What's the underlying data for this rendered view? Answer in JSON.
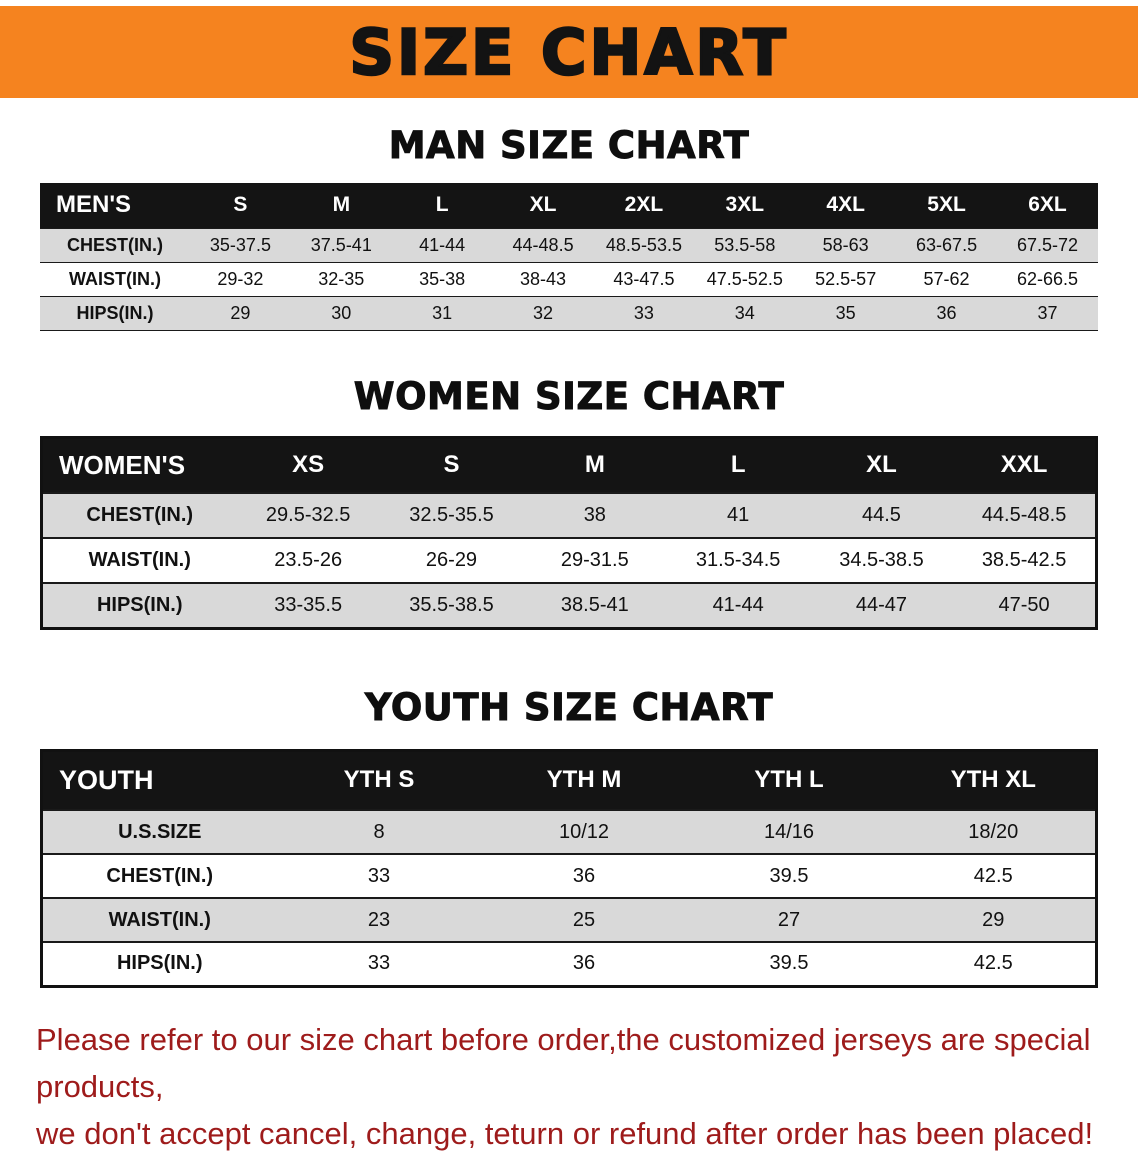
{
  "banner": {
    "title": "SIZE CHART"
  },
  "sections": [
    {
      "id": "men",
      "heading": "MAN SIZE CHART",
      "table": {
        "header": [
          "MEN'S",
          "S",
          "M",
          "L",
          "XL",
          "2XL",
          "3XL",
          "4XL",
          "5XL",
          "6XL"
        ],
        "rows": [
          [
            "CHEST(IN.)",
            "35-37.5",
            "37.5-41",
            "41-44",
            "44-48.5",
            "48.5-53.5",
            "53.5-58",
            "58-63",
            "63-67.5",
            "67.5-72"
          ],
          [
            "WAIST(IN.)",
            "29-32",
            "32-35",
            "35-38",
            "38-43",
            "43-47.5",
            "47.5-52.5",
            "52.5-57",
            "57-62",
            "62-66.5"
          ],
          [
            "HIPS(IN.)",
            "29",
            "30",
            "31",
            "32",
            "33",
            "34",
            "35",
            "36",
            "37"
          ]
        ]
      }
    },
    {
      "id": "women",
      "heading": "WOMEN SIZE CHART",
      "table": {
        "header": [
          "WOMEN'S",
          "XS",
          "S",
          "M",
          "L",
          "XL",
          "XXL"
        ],
        "rows": [
          [
            "CHEST(IN.)",
            "29.5-32.5",
            "32.5-35.5",
            "38",
            "41",
            "44.5",
            "44.5-48.5"
          ],
          [
            "WAIST(IN.)",
            "23.5-26",
            "26-29",
            "29-31.5",
            "31.5-34.5",
            "34.5-38.5",
            "38.5-42.5"
          ],
          [
            "HIPS(IN.)",
            "33-35.5",
            "35.5-38.5",
            "38.5-41",
            "41-44",
            "44-47",
            "47-50"
          ]
        ]
      }
    },
    {
      "id": "youth",
      "heading": "YOUTH SIZE CHART",
      "table": {
        "header": [
          "YOUTH",
          "YTH S",
          "YTH M",
          "YTH L",
          "YTH XL"
        ],
        "rows": [
          [
            "U.S.SIZE",
            "8",
            "10/12",
            "14/16",
            "18/20"
          ],
          [
            "CHEST(IN.)",
            "33",
            "36",
            "39.5",
            "42.5"
          ],
          [
            "WAIST(IN.)",
            "23",
            "25",
            "27",
            "29"
          ],
          [
            "HIPS(IN.)",
            "33",
            "36",
            "39.5",
            "42.5"
          ]
        ]
      }
    }
  ],
  "disclaimer": {
    "lines": [
      "Please refer to our size chart before order,the customized jerseys are special products,",
      "we don't accept cancel, change, teturn or refund after order has been placed!"
    ]
  },
  "colors": {
    "banner_orange": "#F5831F",
    "header_black": "#141414",
    "row_gray": "#D9D9D9",
    "disclaimer_red": "#9E1B1B"
  }
}
